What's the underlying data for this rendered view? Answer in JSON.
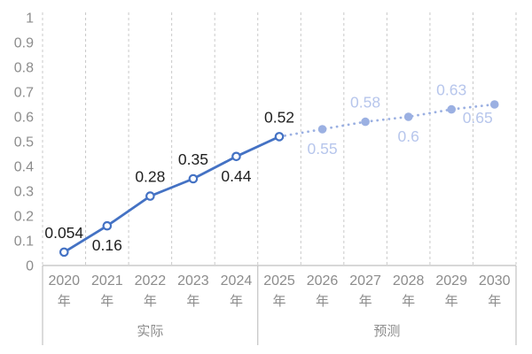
{
  "chart_data": {
    "type": "line",
    "title": "",
    "xlabel": "",
    "ylabel": "",
    "categories": [
      "2020",
      "2021",
      "2022",
      "2023",
      "2024",
      "2025",
      "2026",
      "2027",
      "2028",
      "2029",
      "2030"
    ],
    "category_suffix": "年",
    "y_axis": {
      "min": 0,
      "max": 1,
      "ticks": [
        {
          "label": "0",
          "value": 0.0
        },
        {
          "label": "0.1",
          "value": 0.1
        },
        {
          "label": "0.2",
          "value": 0.2
        },
        {
          "label": "0.3",
          "value": 0.3
        },
        {
          "label": "0.4",
          "value": 0.4
        },
        {
          "label": "0.5",
          "value": 0.5
        },
        {
          "label": "0.6",
          "value": 0.6
        },
        {
          "label": "0.7",
          "value": 0.7
        },
        {
          "label": "0.8",
          "value": 0.8
        },
        {
          "label": "0.9",
          "value": 0.9
        },
        {
          "label": "1",
          "value": 1.0
        }
      ]
    },
    "groups": [
      {
        "label": "实际",
        "from": 0,
        "to": 4
      },
      {
        "label": "预测",
        "from": 5,
        "to": 10
      }
    ],
    "grid": "vertical-dashed",
    "legend_position": "none",
    "series": [
      {
        "name": "实际",
        "line_style": "solid",
        "color": "#4472c4",
        "marker": "hollow",
        "label_color": "#1f1f1f",
        "start_index": 0,
        "points": [
          {
            "value": 0.054,
            "label": "0.054",
            "label_pos": "above",
            "show_marker": true
          },
          {
            "value": 0.16,
            "label": "0.16",
            "label_pos": "below",
            "show_marker": true
          },
          {
            "value": 0.28,
            "label": "0.28",
            "label_pos": "above",
            "show_marker": true
          },
          {
            "value": 0.35,
            "label": "0.35",
            "label_pos": "above",
            "show_marker": true
          },
          {
            "value": 0.44,
            "label": "0.44",
            "label_pos": "below",
            "show_marker": true
          },
          {
            "value": 0.52,
            "label": "0.52",
            "label_pos": "above",
            "show_marker": true
          }
        ]
      },
      {
        "name": "预测",
        "line_style": "dotted",
        "color": "#9bb0e2",
        "marker": "filled",
        "label_color": "#b7c6ec",
        "start_index": 5,
        "points": [
          {
            "value": 0.52,
            "label": "",
            "label_pos": null,
            "show_marker": false
          },
          {
            "value": 0.55,
            "label": "0.55",
            "label_pos": "below",
            "show_marker": true
          },
          {
            "value": 0.58,
            "label": "0.58",
            "label_pos": "above",
            "show_marker": true
          },
          {
            "value": 0.6,
            "label": "0.6",
            "label_pos": "below",
            "show_marker": true
          },
          {
            "value": 0.63,
            "label": "0.63",
            "label_pos": "above",
            "show_marker": true
          },
          {
            "value": 0.65,
            "label": "0.65",
            "label_pos": "below-left",
            "show_marker": true
          }
        ]
      }
    ],
    "colors": {
      "grid": "#c9c9c9",
      "axis": "#bfbfbf",
      "divider": "#c3c3c3",
      "tick_text": "#8c8c8c",
      "category_text": "#8c8c8c",
      "group_text": "#8c8c8c",
      "background": "#ffffff"
    }
  }
}
